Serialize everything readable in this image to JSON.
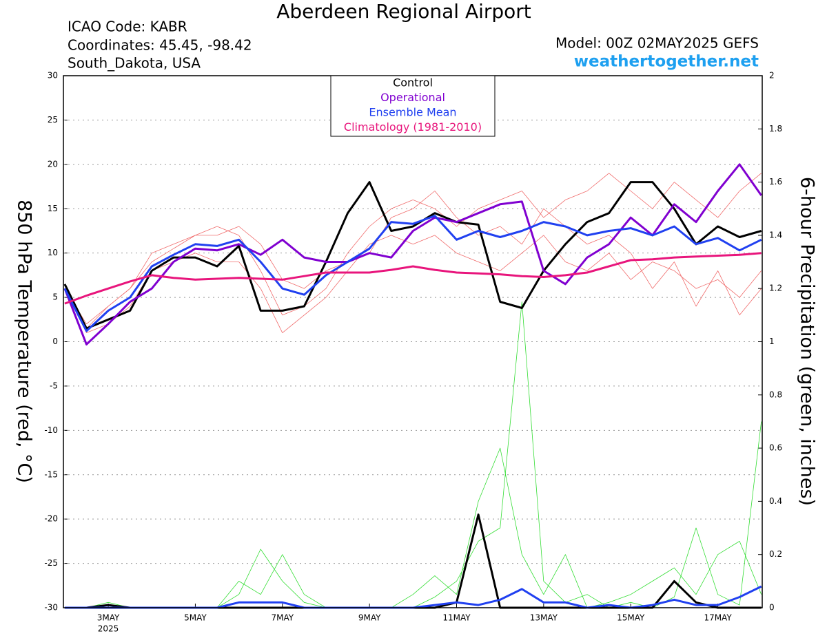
{
  "chart_data": {
    "type": "line",
    "title": "Aberdeen Regional Airport",
    "info_left": [
      "ICAO Code: KABR",
      "Coordinates: 45.45, -98.42",
      "South_Dakota, USA"
    ],
    "model": "Model: 00Z 02MAY2025 GEFS",
    "site": "weathertogether.net",
    "ylabel": "850 hPa Temperature (red, °C)",
    "y2label": "6-hour Precipitation (green, inches)",
    "x_year": "2025",
    "x": [
      2,
      2.5,
      3,
      3.5,
      4,
      4.5,
      5,
      5.5,
      6,
      6.5,
      7,
      7.5,
      8,
      8.5,
      9,
      9.5,
      10,
      10.5,
      11,
      11.5,
      12,
      12.5,
      13,
      13.5,
      14,
      14.5,
      15,
      15.5,
      16,
      16.5,
      17,
      17.5,
      18
    ],
    "xlim": [
      1.97,
      18.02
    ],
    "xticks": [
      {
        "value": 3,
        "label": "3MAY"
      },
      {
        "value": 5,
        "label": "5MAY"
      },
      {
        "value": 7,
        "label": "7MAY"
      },
      {
        "value": 9,
        "label": "9MAY"
      },
      {
        "value": 11,
        "label": "11MAY"
      },
      {
        "value": 13,
        "label": "13MAY"
      },
      {
        "value": 15,
        "label": "15MAY"
      },
      {
        "value": 17,
        "label": "17MAY"
      }
    ],
    "ylim": [
      -30,
      30
    ],
    "yticks": [
      -30,
      -25,
      -20,
      -15,
      -10,
      -5,
      0,
      5,
      10,
      15,
      20,
      25,
      30
    ],
    "y2lim": [
      0,
      2
    ],
    "y2ticks": [
      0,
      0.2,
      0.4,
      0.6,
      0.8,
      1,
      1.2,
      1.4,
      1.6,
      1.8,
      2
    ],
    "grid": true,
    "ensemble_members": [
      {
        "color": "#f06a6a",
        "axis": "y",
        "values": [
          6,
          1.5,
          4,
          6,
          9,
          10.5,
          12,
          13,
          12,
          8,
          3,
          4,
          6,
          10,
          13,
          15,
          16,
          15,
          13,
          15,
          16,
          17,
          14,
          16,
          17,
          19,
          17,
          15,
          18,
          16,
          14,
          17,
          19
        ]
      },
      {
        "color": "#f06a6a",
        "axis": "y",
        "values": [
          6,
          1,
          2,
          4,
          8,
          9,
          10,
          9,
          9,
          6,
          1,
          3,
          5,
          8,
          11,
          12,
          11,
          12,
          10,
          9,
          8,
          10,
          12,
          9,
          8,
          10,
          7,
          9,
          8,
          6,
          7,
          5,
          8
        ]
      },
      {
        "color": "#f06a6a",
        "axis": "y",
        "values": [
          6,
          2,
          4,
          6,
          10,
          11,
          12,
          12,
          13,
          11,
          7,
          6,
          8,
          9,
          10,
          14,
          15,
          17,
          14,
          12,
          13,
          11,
          15,
          13,
          11,
          12,
          10,
          6,
          9,
          4,
          8,
          3,
          6
        ]
      },
      {
        "color": "#33dd33",
        "axis": "y2",
        "values": [
          0,
          0,
          0.02,
          0,
          0,
          0,
          0,
          0,
          0.05,
          0.22,
          0.1,
          0.02,
          0,
          0,
          0,
          0,
          0,
          0.04,
          0.1,
          0.25,
          0.3,
          1.15,
          0.1,
          0.02,
          0.05,
          0,
          0.02,
          0,
          0.04,
          0.3,
          0.05,
          0.01,
          0.7
        ]
      },
      {
        "color": "#33dd33",
        "axis": "y2",
        "values": [
          0,
          0,
          0.01,
          0,
          0,
          0,
          0,
          0,
          0.1,
          0.05,
          0.2,
          0.05,
          0,
          0,
          0,
          0,
          0.05,
          0.12,
          0.05,
          0.4,
          0.6,
          0.2,
          0.05,
          0.2,
          0,
          0.02,
          0.05,
          0.1,
          0.15,
          0.05,
          0.2,
          0.25,
          0.05
        ]
      }
    ],
    "series": [
      {
        "name": "Control",
        "color": "#000000",
        "axis": "y",
        "values": [
          6.5,
          1.5,
          2.5,
          3.5,
          8,
          9.5,
          9.5,
          8.5,
          10.8,
          3.5,
          3.5,
          4,
          9,
          14.5,
          18,
          12.5,
          13,
          14.5,
          13.5,
          13.2,
          4.5,
          3.8,
          8,
          11,
          13.5,
          14.5,
          18,
          18,
          15,
          11,
          13,
          11.8,
          12.5
        ]
      },
      {
        "name": "Operational",
        "color": "#8000d0",
        "axis": "y",
        "values": [
          6,
          -0.3,
          2,
          4.5,
          6,
          9,
          10.5,
          10.3,
          11,
          9.8,
          11.5,
          9.5,
          9,
          9,
          10,
          9.5,
          12.5,
          14,
          13.5,
          14.5,
          15.5,
          15.8,
          8,
          6.5,
          9.5,
          11,
          14,
          12,
          15.5,
          13.5,
          17,
          20,
          16.5
        ]
      },
      {
        "name": "Ensemble Mean",
        "color": "#2040f0",
        "axis": "y",
        "values": [
          6,
          1.2,
          3.5,
          5,
          8.5,
          9.8,
          11,
          10.8,
          11.5,
          9,
          6,
          5.3,
          7.5,
          9,
          10.5,
          13.5,
          13.3,
          14.2,
          11.5,
          12.5,
          11.8,
          12.5,
          13.5,
          13,
          12,
          12.5,
          12.8,
          12,
          13,
          11,
          11.7,
          10.3,
          11.5
        ]
      },
      {
        "name": "Climatology (1981-2010)",
        "color": "#e8157c",
        "axis": "y",
        "values": [
          4.3,
          5.2,
          6,
          6.8,
          7.5,
          7.2,
          7,
          7.1,
          7.2,
          7.1,
          7,
          7.4,
          7.8,
          7.8,
          7.8,
          8.1,
          8.5,
          8.1,
          7.8,
          7.7,
          7.6,
          7.4,
          7.3,
          7.5,
          7.8,
          8.5,
          9.2,
          9.3,
          9.5,
          9.6,
          9.7,
          9.8,
          10
        ]
      }
    ],
    "precip_series": [
      {
        "color": "#000000",
        "axis": "y2",
        "values": [
          0,
          0,
          0.01,
          0,
          0,
          0,
          0,
          0,
          0,
          0,
          0,
          0,
          0,
          0,
          0,
          0,
          0,
          0,
          0.02,
          0.35,
          0,
          0,
          0,
          0,
          0,
          0,
          0,
          0,
          0.1,
          0.02,
          0,
          0,
          0
        ]
      },
      {
        "color": "#2040f0",
        "axis": "y2",
        "values": [
          0,
          0,
          0,
          0,
          0,
          0,
          0,
          0,
          0.02,
          0.02,
          0.02,
          0,
          0,
          0,
          0,
          0,
          0,
          0.01,
          0.02,
          0.01,
          0.03,
          0.07,
          0.02,
          0.02,
          0,
          0.01,
          0,
          0.01,
          0.03,
          0.01,
          0.01,
          0.04,
          0.08
        ]
      }
    ]
  }
}
